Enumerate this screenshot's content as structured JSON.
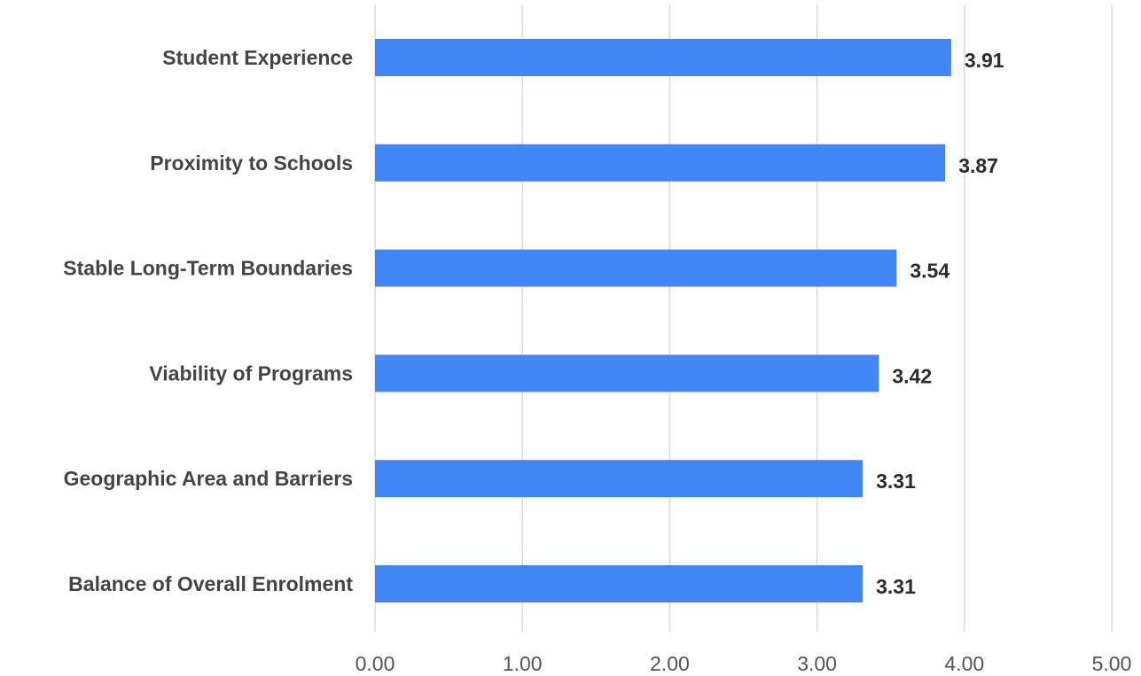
{
  "chart_data": {
    "type": "bar",
    "orientation": "horizontal",
    "title": "",
    "xlabel": "",
    "ylabel": "",
    "categories": [
      "Student Experience",
      "Proximity to Schools",
      "Stable Long-Term Boundaries",
      "Viability of Programs",
      "Geographic Area and Barriers",
      "Balance of Overall Enrolment"
    ],
    "values": [
      3.91,
      3.87,
      3.54,
      3.42,
      3.31,
      3.31
    ],
    "value_labels": [
      "3.91",
      "3.87",
      "3.54",
      "3.42",
      "3.31",
      "3.31"
    ],
    "xlim": [
      0,
      5
    ],
    "x_ticks": [
      "0.00",
      "1.00",
      "2.00",
      "3.00",
      "4.00",
      "5.00"
    ],
    "grid": "vertical",
    "legend": "none",
    "bar_color": "#4285f4"
  }
}
